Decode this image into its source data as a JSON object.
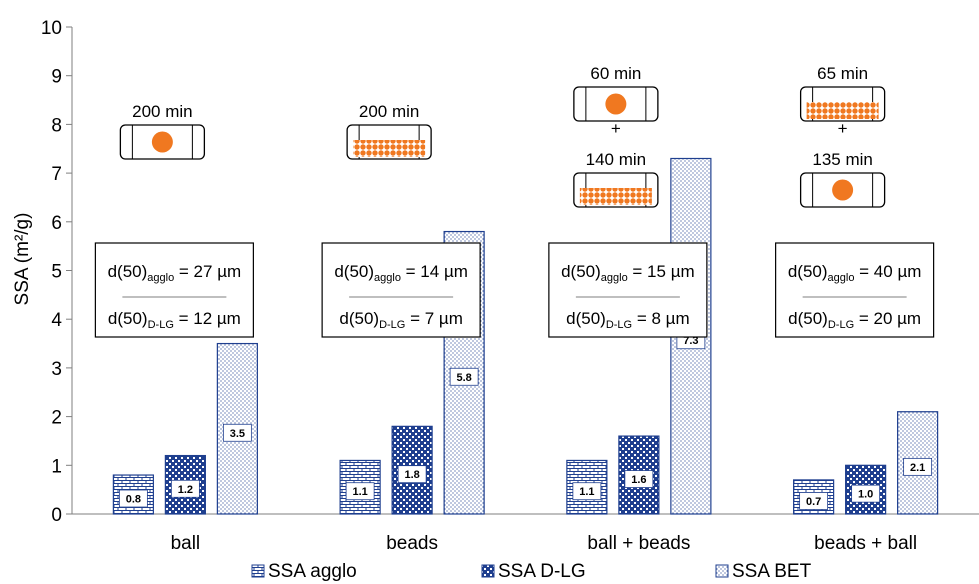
{
  "chart_data": {
    "type": "bar",
    "ylabel": "SSA (m²/g)",
    "ylim": [
      0,
      10
    ],
    "yticks": [
      "0",
      "1",
      "2",
      "3",
      "4",
      "5",
      "6",
      "7",
      "8",
      "9",
      "10"
    ],
    "categories": [
      "ball",
      "beads",
      "ball + beads",
      "beads + ball"
    ],
    "series": [
      {
        "name": "SSA agglo",
        "pattern": "brick",
        "values": [
          0.8,
          1.1,
          1.1,
          0.7
        ],
        "labels": [
          "0.8",
          "1.1",
          "1.1",
          "0.7"
        ]
      },
      {
        "name": "SSA D-LG",
        "pattern": "checker",
        "values": [
          1.2,
          1.8,
          1.6,
          1.0
        ],
        "labels": [
          "1.2",
          "1.8",
          "1.6",
          "1.0"
        ]
      },
      {
        "name": "SSA BET",
        "pattern": "dots",
        "values": [
          3.5,
          5.8,
          7.3,
          2.1
        ],
        "labels": [
          "3.5",
          "5.8",
          "7.3",
          "2.1"
        ]
      }
    ],
    "legend_position": "bottom",
    "colors": {
      "series": "#1f3f8f",
      "grinding_media": "#f07820",
      "axis": "#7f7f7f"
    },
    "annotations": [
      {
        "milling": [
          {
            "time": "200 min",
            "media": "ball"
          }
        ],
        "d50_agglo": {
          "prefix": "d(50)",
          "sub": "agglo",
          "value": " = 27 µm"
        },
        "d50_dlg": {
          "prefix": "d(50)",
          "sub": "D-LG",
          "value": " = 12 µm"
        }
      },
      {
        "milling": [
          {
            "time": "200 min",
            "media": "beads"
          }
        ],
        "d50_agglo": {
          "prefix": "d(50)",
          "sub": "agglo",
          "value": " = 14 µm"
        },
        "d50_dlg": {
          "prefix": "d(50)",
          "sub": "D-LG",
          "value": " = 7 µm"
        }
      },
      {
        "milling": [
          {
            "time": "60 min",
            "media": "ball"
          },
          {
            "time": "140 min",
            "media": "beads"
          }
        ],
        "d50_agglo": {
          "prefix": "d(50)",
          "sub": "agglo",
          "value": " = 15 µm"
        },
        "d50_dlg": {
          "prefix": "d(50)",
          "sub": "D-LG",
          "value": " = 8 µm"
        }
      },
      {
        "milling": [
          {
            "time": "65 min",
            "media": "beads"
          },
          {
            "time": "135 min",
            "media": "ball"
          }
        ],
        "d50_agglo": {
          "prefix": "d(50)",
          "sub": "agglo",
          "value": " = 40 µm"
        },
        "d50_dlg": {
          "prefix": "d(50)",
          "sub": "D-LG",
          "value": " = 20 µm"
        }
      }
    ],
    "sequence_symbol": "+"
  }
}
